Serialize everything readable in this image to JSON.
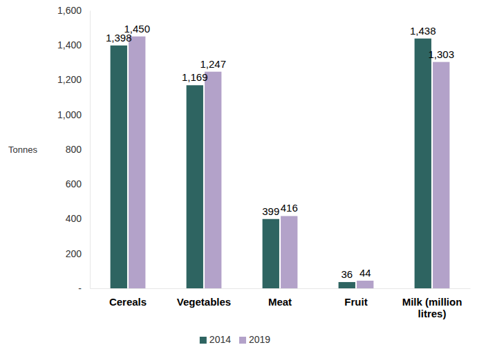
{
  "chart_data": {
    "type": "bar",
    "y_label": "Tonnes",
    "categories": [
      "Cereals",
      "Vegetables",
      "Meat",
      "Fruit",
      "Milk (million litres)"
    ],
    "series": [
      {
        "name": "2014",
        "color": "#2e6461",
        "values": [
          1398,
          1169,
          399,
          36,
          1438
        ],
        "value_labels": [
          "1,398",
          "1,169",
          "399",
          "36",
          "1,438"
        ]
      },
      {
        "name": "2019",
        "color": "#b3a2c9",
        "values": [
          1450,
          1247,
          416,
          44,
          1303
        ],
        "value_labels": [
          "1,450",
          "1,247",
          "416",
          "44",
          "1,303"
        ]
      }
    ],
    "ylim": [
      0,
      1600
    ],
    "yticks": [
      {
        "value": 0,
        "label": "-"
      },
      200,
      400,
      600,
      800,
      {
        "value": 1000,
        "label": "1,000"
      },
      {
        "value": 1200,
        "label": "1,200"
      },
      {
        "value": 1400,
        "label": "1,400"
      },
      {
        "value": 1600,
        "label": "1,600"
      }
    ],
    "grid": false,
    "legend": "bottom",
    "data_labels": true
  }
}
